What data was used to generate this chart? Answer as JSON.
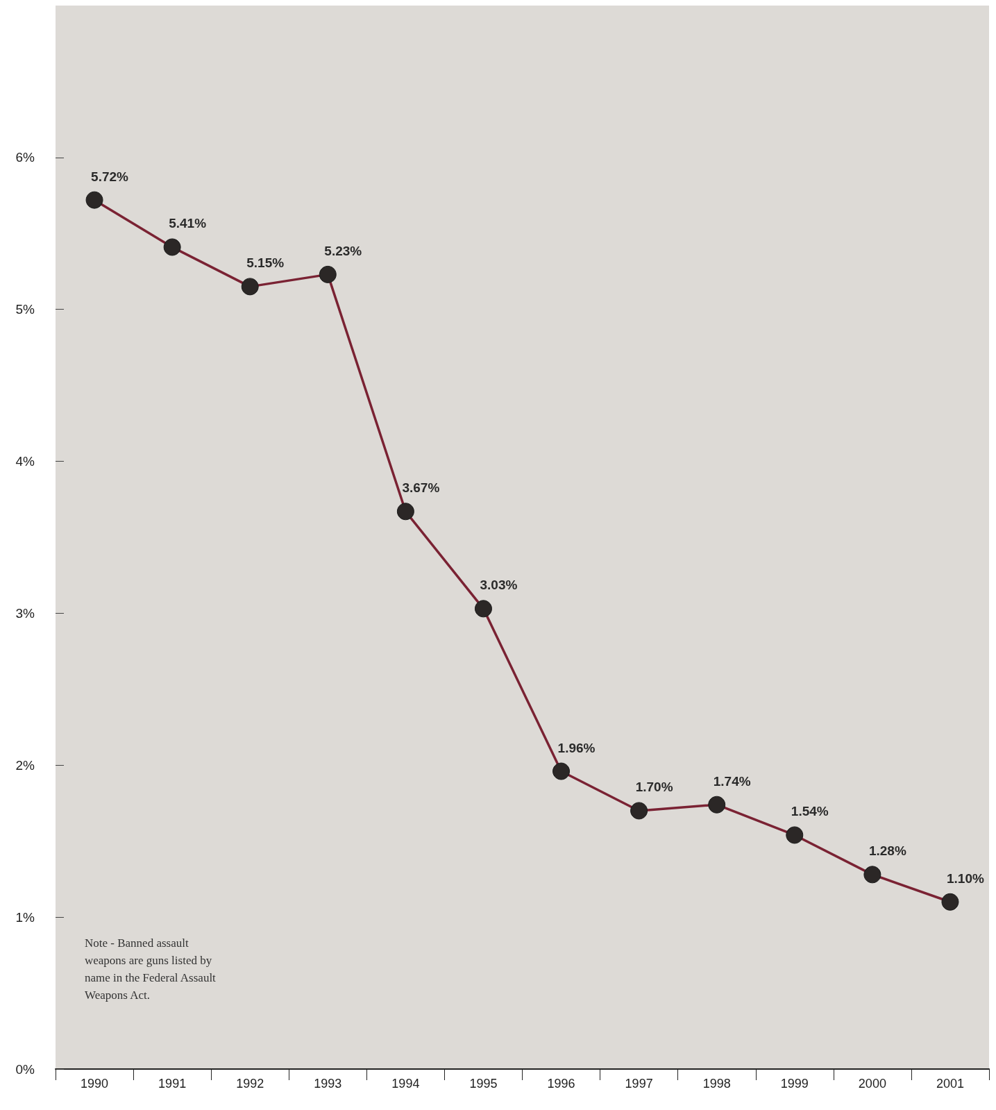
{
  "chart_data": {
    "type": "line",
    "categories": [
      "1990",
      "1991",
      "1992",
      "1993",
      "1994",
      "1995",
      "1996",
      "1997",
      "1998",
      "1999",
      "2000",
      "2001"
    ],
    "series": [
      {
        "color": "#7a2233",
        "values": [
          5.72,
          5.41,
          5.15,
          5.23,
          3.67,
          3.03,
          1.96,
          1.7,
          1.74,
          1.54,
          1.28,
          1.1
        ],
        "value_labels": [
          "5.72%",
          "5.41%",
          "5.15%",
          "5.23%",
          "3.67%",
          "3.03%",
          "1.96%",
          "1.70%",
          "1.74%",
          "1.54%",
          "1.28%",
          "1.10%"
        ]
      }
    ],
    "ylim": [
      0,
      7
    ],
    "yticks": [
      {
        "value": 0,
        "label": "0%"
      },
      {
        "value": 1,
        "label": "1%"
      },
      {
        "value": 2,
        "label": "2%"
      },
      {
        "value": 3,
        "label": "3%"
      },
      {
        "value": 4,
        "label": "4%"
      },
      {
        "value": 5,
        "label": "5%"
      },
      {
        "value": 6,
        "label": "6%"
      }
    ],
    "marker": "circle",
    "line_style": "solid",
    "grid": false,
    "annotations": [
      "Note - Banned assault weapons are guns listed by name in the Federal Assault Weapons Act."
    ]
  }
}
